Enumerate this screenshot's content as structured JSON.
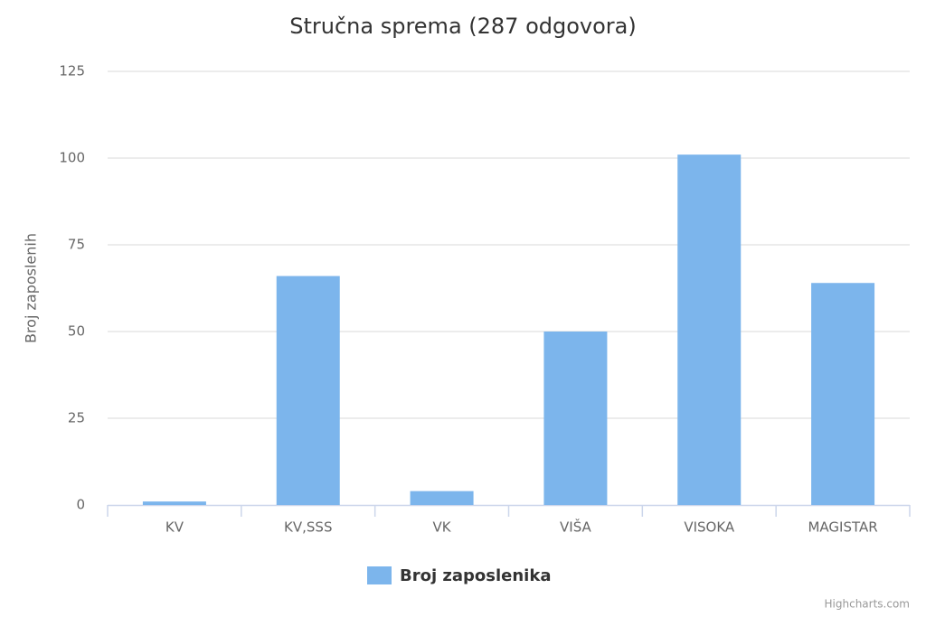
{
  "chart_data": {
    "type": "bar",
    "title": "Stručna sprema (287 odgovora)",
    "y_label": "Broj zaposlenih",
    "categories": [
      "KV",
      "KV,SSS",
      "VK",
      "VIŠA",
      "VISOKA",
      "MAGISTAR"
    ],
    "series": [
      {
        "name": "Broj zaposlenika",
        "color": "#7cb5ec",
        "values": [
          1,
          66,
          4,
          50,
          101,
          64
        ]
      }
    ],
    "ylim": [
      0,
      125
    ],
    "yticks": [
      0,
      25,
      50,
      75,
      100,
      125
    ],
    "grid": true,
    "legend": "bottom",
    "credits": "Highcharts.com"
  }
}
